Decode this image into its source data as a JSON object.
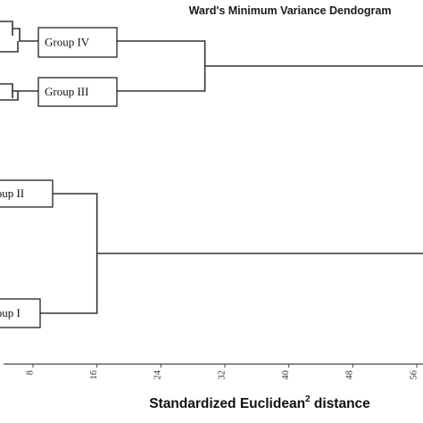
{
  "chart_data": {
    "type": "dendrogram",
    "title": "Ward's Minimum Variance Dendogram",
    "xlabel": "Standardized Euclidean",
    "xlabel_superscript": "2",
    "xlabel_suffix": " distance",
    "x_ticks": [
      "8",
      "16",
      "24",
      "32",
      "40",
      "48",
      "56"
    ],
    "xlim": [
      4,
      58
    ],
    "groups": [
      {
        "label": "Group IV"
      },
      {
        "label": "Group III"
      },
      {
        "label": "Group II"
      },
      {
        "label": "Group I"
      }
    ],
    "merges": [
      {
        "left": "Group IV",
        "right": "Group III",
        "height": 29.5
      },
      {
        "left": "Group II",
        "right": "Group I",
        "height": 16
      }
    ]
  }
}
